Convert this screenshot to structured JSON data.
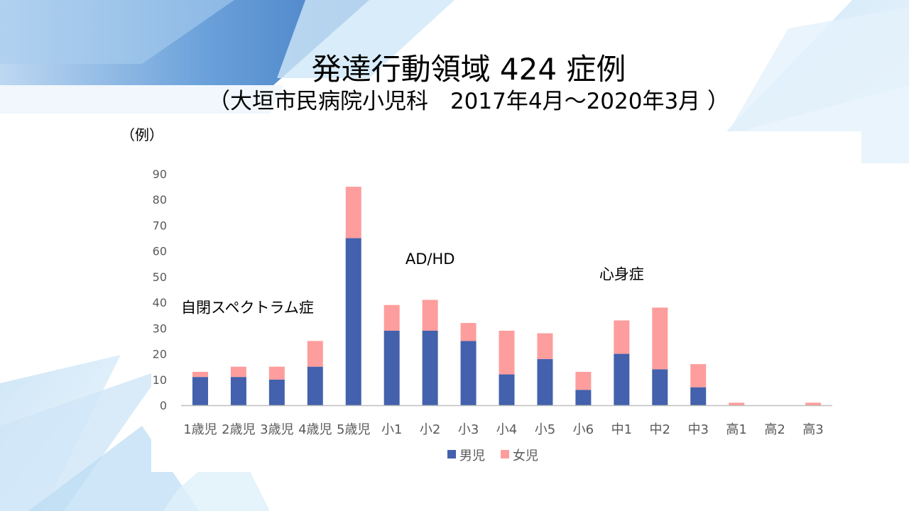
{
  "slide": {
    "title": "発達行動領域 424 症例",
    "subtitle": "（大垣市民病院小児科　2017年4月～2020年3月 ）",
    "unit": "（例）"
  },
  "chart_data": {
    "type": "bar",
    "stacked": true,
    "categories": [
      "1歳児",
      "2歳児",
      "3歳児",
      "4歳児",
      "5歳児",
      "小1",
      "小2",
      "小3",
      "小4",
      "小5",
      "小6",
      "中1",
      "中2",
      "中3",
      "高1",
      "高2",
      "高3"
    ],
    "series": [
      {
        "name": "男児",
        "color": "#4361ac",
        "values": [
          11,
          11,
          10,
          15,
          65,
          29,
          29,
          25,
          12,
          18,
          6,
          20,
          14,
          7,
          0,
          0,
          0
        ]
      },
      {
        "name": "女児",
        "color": "#fe9d9d",
        "values": [
          2,
          4,
          5,
          10,
          20,
          10,
          12,
          7,
          17,
          10,
          7,
          13,
          24,
          9,
          1,
          0,
          1
        ]
      }
    ],
    "ylim": [
      0,
      90
    ],
    "yticks": [
      0,
      10,
      20,
      30,
      40,
      50,
      60,
      70,
      80,
      90
    ],
    "grid": false,
    "legend": "bottom",
    "annotations": [
      {
        "text": "自閉スペクトラム症",
        "category": "1歳児",
        "value": 36
      },
      {
        "text": "AD/HD",
        "category": "小2",
        "value": 55
      },
      {
        "text": "心身症",
        "category": "中1",
        "value": 49
      }
    ]
  }
}
